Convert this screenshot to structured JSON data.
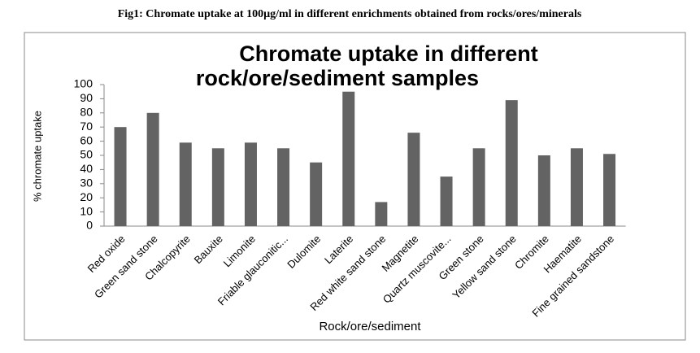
{
  "caption": "Fig1: Chromate uptake at 100µg/ml in different enrichments obtained from rocks/ores/minerals",
  "chart_data": {
    "type": "bar",
    "title": [
      "Chromate uptake in different",
      "rock/ore/sediment  samples"
    ],
    "x_label": "Rock/ore/sediment",
    "y_label": "% chromate uptake",
    "categories": [
      "Red oxide",
      "Green sand stone",
      "Chalcopyrite",
      "Bauxite",
      "Limonite",
      "Friable glauconitic...",
      "Dulomite",
      "Laterite",
      "Red white sand stone",
      "Magnetite",
      "Quartz muscovite...",
      "Green stone",
      "Yellow sand stone",
      "Chromite",
      "Haematite",
      "Fine grained sandstone"
    ],
    "values": [
      70,
      80,
      59,
      55,
      59,
      55,
      45,
      95,
      17,
      66,
      35,
      55,
      89,
      50,
      55,
      51
    ],
    "color": "#636363",
    "ylim": [
      0,
      100
    ],
    "yticks": [
      0,
      10,
      20,
      30,
      40,
      50,
      60,
      70,
      80,
      90,
      100
    ],
    "grid": false
  }
}
